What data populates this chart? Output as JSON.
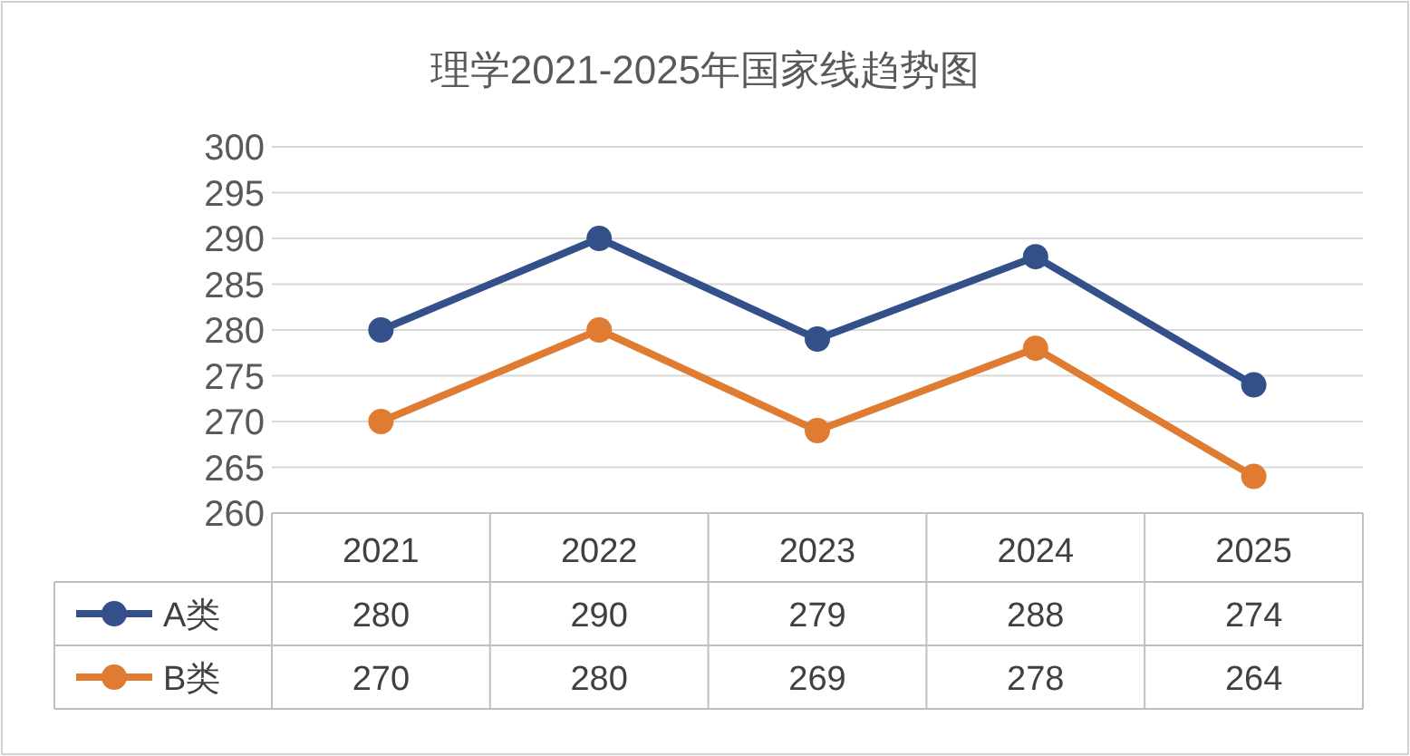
{
  "chart_data": {
    "type": "line",
    "title": "理学2021-2025年国家线趋势图",
    "categories": [
      "2021",
      "2022",
      "2023",
      "2024",
      "2025"
    ],
    "series": [
      {
        "name": "A类",
        "color": "#34508a",
        "values": [
          280,
          290,
          279,
          288,
          274
        ]
      },
      {
        "name": "B类",
        "color": "#e07b32",
        "values": [
          270,
          280,
          269,
          278,
          264
        ]
      }
    ],
    "ylim": [
      260,
      300
    ],
    "yticks": [
      260,
      265,
      270,
      275,
      280,
      285,
      290,
      295,
      300
    ],
    "grid": "y",
    "data_labels": true,
    "legend": "bottom",
    "marker": "circle",
    "line_style": "solid"
  }
}
